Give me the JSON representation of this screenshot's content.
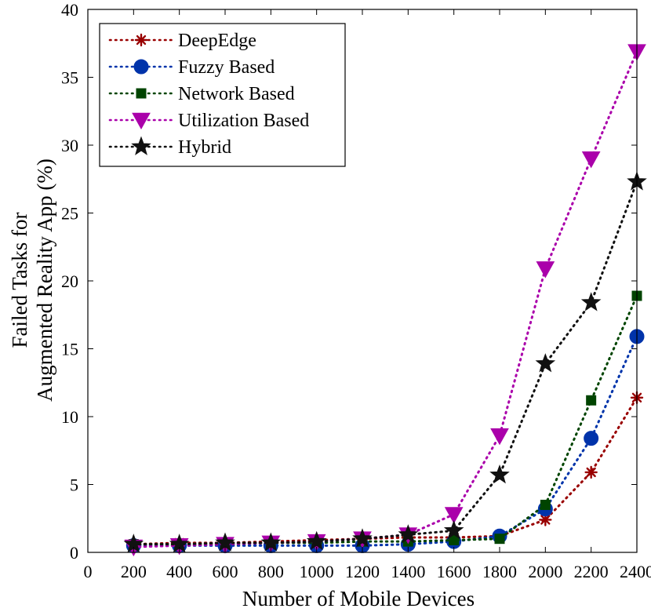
{
  "chart_data": {
    "type": "line",
    "title": "",
    "xlabel": "Number of Mobile Devices",
    "ylabel_lines": [
      "Failed Tasks for",
      "Augmented Reality App (%)"
    ],
    "xlim": [
      0,
      2400
    ],
    "ylim": [
      0,
      40
    ],
    "xticks": [
      0,
      200,
      400,
      600,
      800,
      1000,
      1200,
      1400,
      1600,
      1800,
      2000,
      2200,
      2400
    ],
    "yticks": [
      0,
      5,
      10,
      15,
      20,
      25,
      30,
      35,
      40
    ],
    "grid": false,
    "legend_position": "top-left",
    "x": [
      200,
      400,
      600,
      800,
      1000,
      1200,
      1400,
      1600,
      1800,
      2000,
      2200,
      2400
    ],
    "series": [
      {
        "name": "DeepEdge",
        "color": "#990000",
        "marker": "asterisk",
        "values": [
          0.6,
          0.7,
          0.7,
          0.8,
          0.9,
          1.0,
          1.1,
          1.1,
          1.2,
          2.4,
          5.9,
          11.4
        ]
      },
      {
        "name": "Fuzzy Based",
        "color": "#0033aa",
        "marker": "circle",
        "values": [
          0.5,
          0.5,
          0.5,
          0.5,
          0.5,
          0.5,
          0.6,
          0.8,
          1.2,
          3.2,
          8.4,
          15.9
        ]
      },
      {
        "name": "Network Based",
        "color": "#004400",
        "marker": "square",
        "values": [
          0.6,
          0.6,
          0.6,
          0.7,
          0.7,
          0.8,
          0.8,
          0.9,
          1.0,
          3.5,
          11.2,
          18.9
        ]
      },
      {
        "name": "Utilization Based",
        "color": "#aa00aa",
        "marker": "triangle-down",
        "values": [
          0.4,
          0.5,
          0.6,
          0.7,
          0.8,
          1.0,
          1.3,
          2.8,
          8.6,
          20.9,
          29.0,
          36.9
        ]
      },
      {
        "name": "Hybrid",
        "color": "#111111",
        "marker": "star",
        "values": [
          0.6,
          0.6,
          0.7,
          0.7,
          0.8,
          1.0,
          1.3,
          1.6,
          5.7,
          13.9,
          18.4,
          27.3
        ]
      }
    ]
  }
}
